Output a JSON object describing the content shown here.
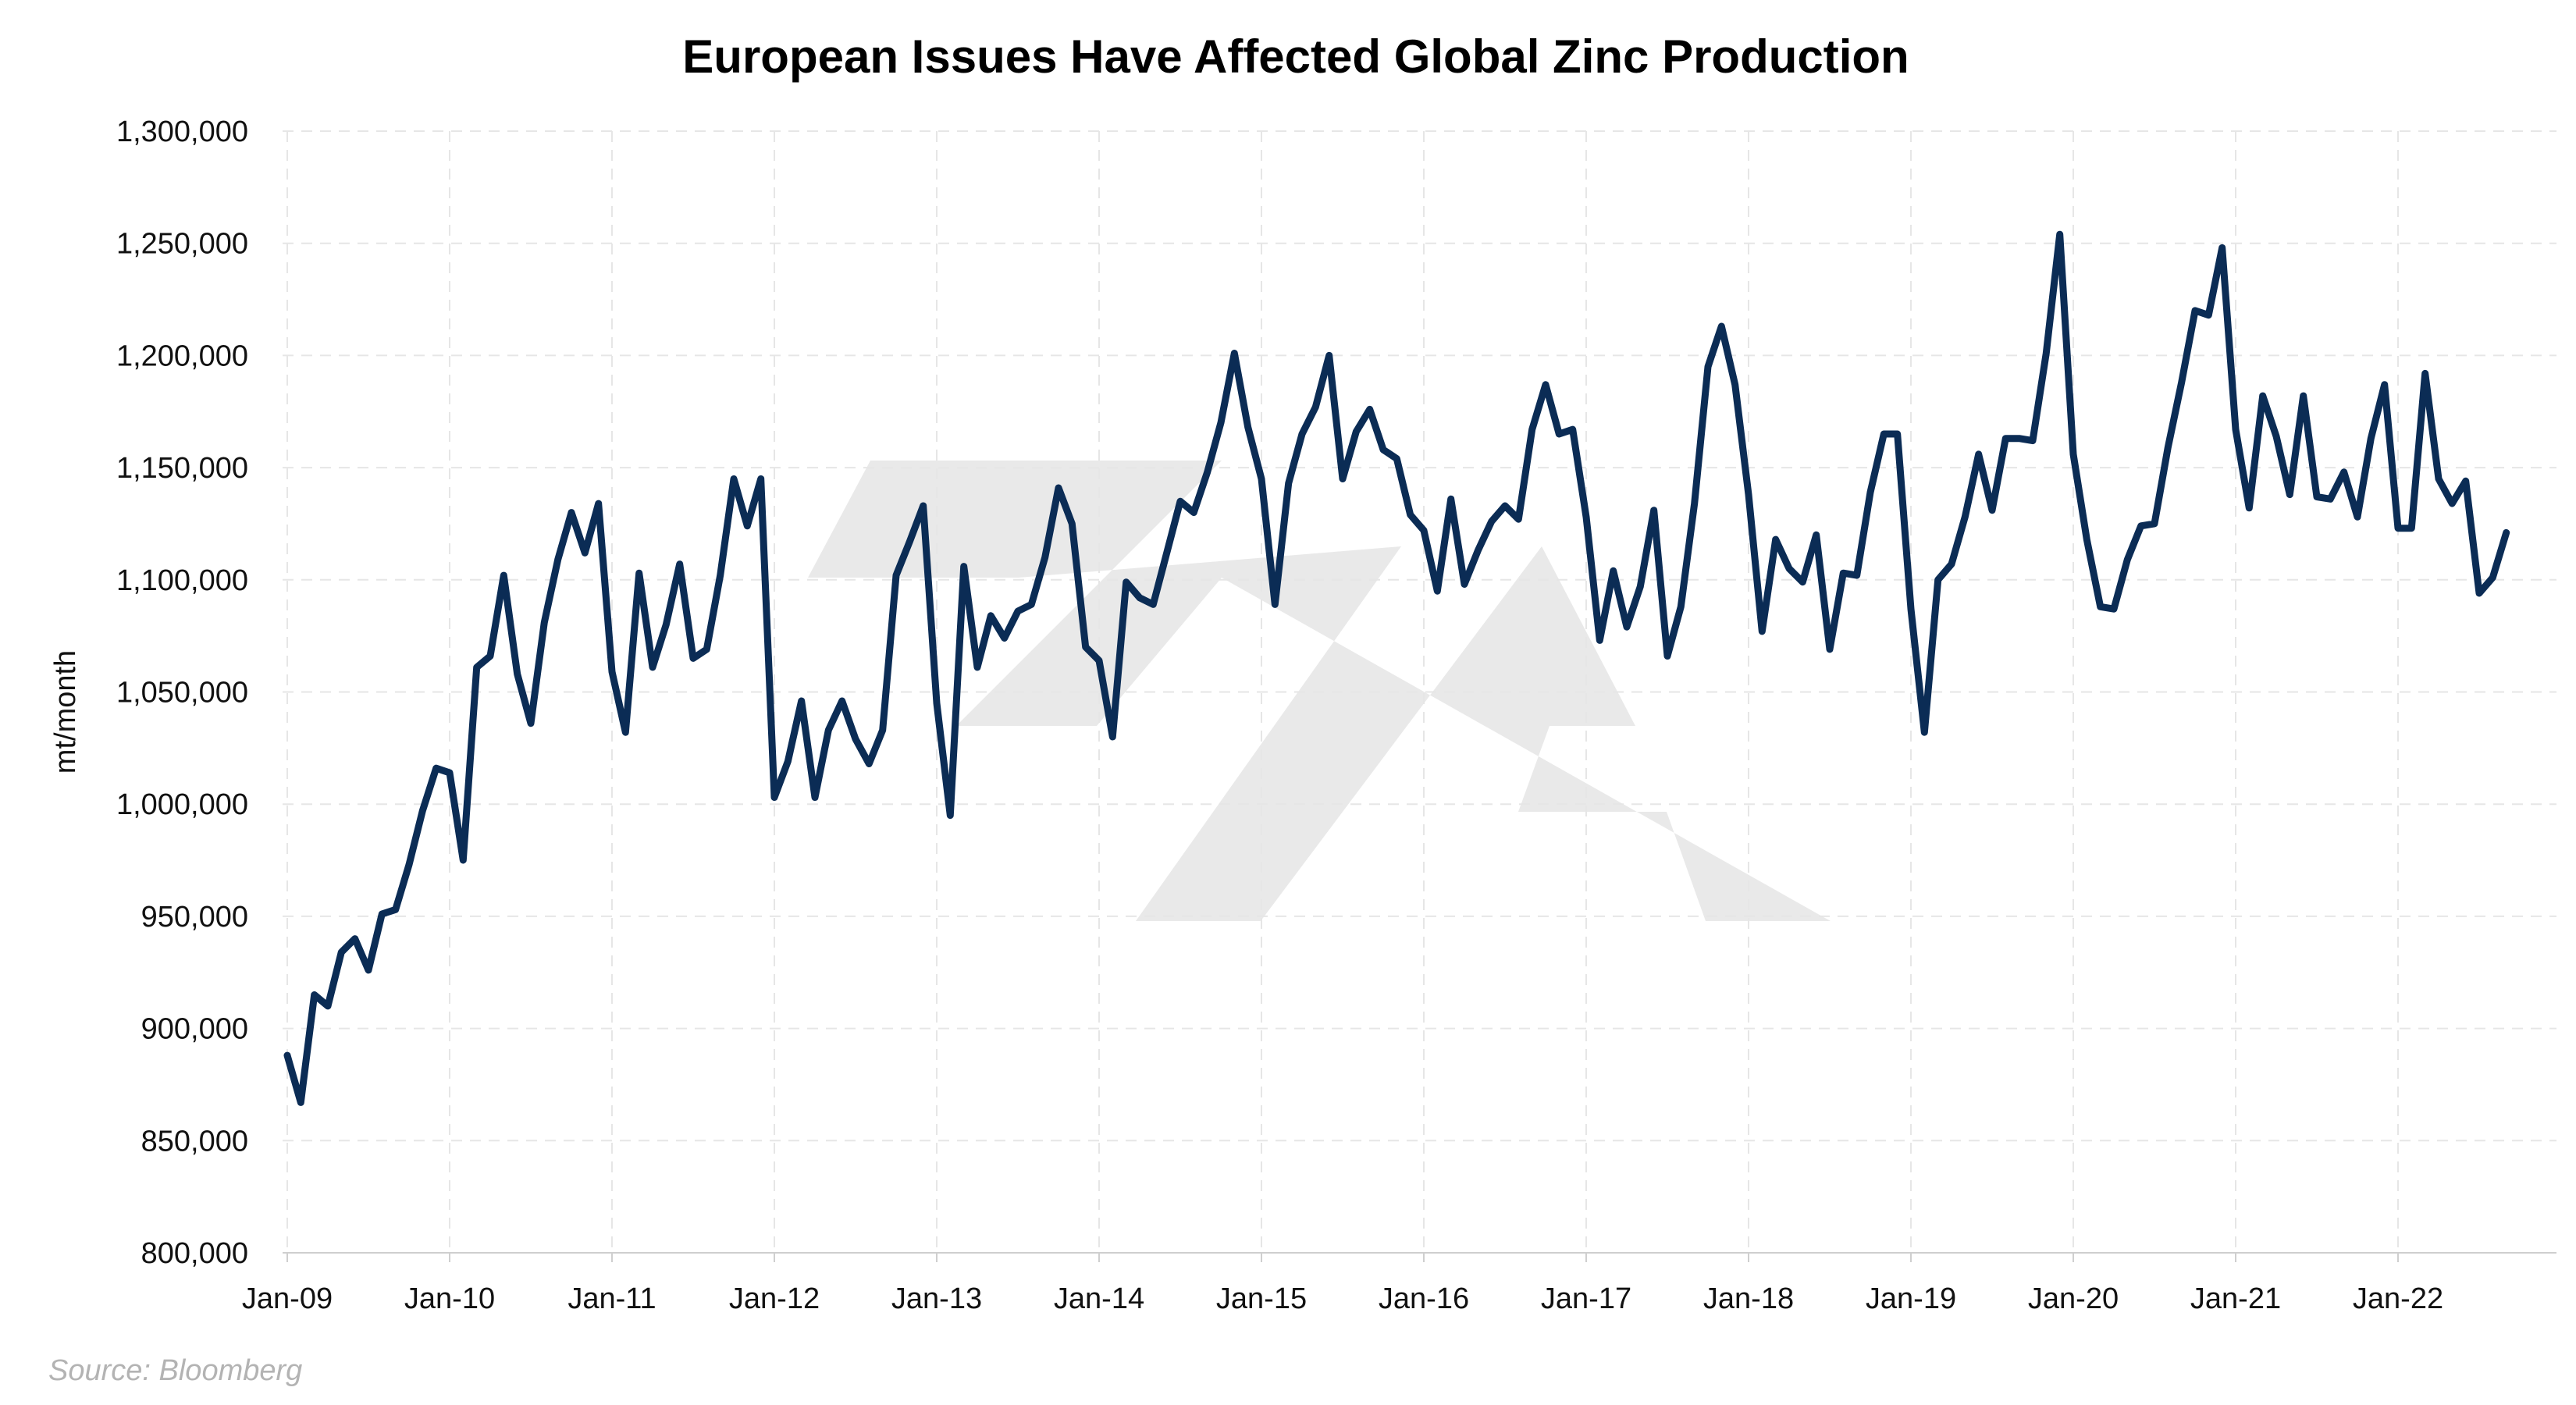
{
  "chart_data": {
    "type": "line",
    "title": "European Issues Have Affected Global Zinc Production",
    "xlabel": "",
    "ylabel": "mt/month",
    "ylim": [
      800000,
      1300000
    ],
    "yticks": [
      "800,000",
      "850,000",
      "900,000",
      "950,000",
      "1,000,000",
      "1,050,000",
      "1,100,000",
      "1,150,000",
      "1,200,000",
      "1,250,000",
      "1,300,000"
    ],
    "xticks": [
      "Jan-09",
      "Jan-10",
      "Jan-11",
      "Jan-12",
      "Jan-13",
      "Jan-14",
      "Jan-15",
      "Jan-16",
      "Jan-17",
      "Jan-18",
      "Jan-19",
      "Jan-20",
      "Jan-21",
      "Jan-22"
    ],
    "grid": true,
    "legend": "none",
    "line_color": "#0b2c55",
    "x_start": "Jan-09",
    "x_end": "Oct-22",
    "series": [
      {
        "values": [
          888000,
          867000,
          915000,
          910000,
          934000,
          940000,
          926000,
          951000,
          953000,
          973000,
          997000,
          1016000,
          1014000,
          975000,
          1061000,
          1066000,
          1102000,
          1058000,
          1036000,
          1081000,
          1109000,
          1130000,
          1112000,
          1134000,
          1059000,
          1032000,
          1103000,
          1061000,
          1080000,
          1107000,
          1065000,
          1069000,
          1102000,
          1145000,
          1124000,
          1145000,
          1003000,
          1019000,
          1046000,
          1003000,
          1033000,
          1046000,
          1029000,
          1018000,
          1033000,
          1102000,
          1117000,
          1133000,
          1045000,
          995000,
          1106000,
          1061000,
          1084000,
          1074000,
          1086000,
          1089000,
          1110000,
          1141000,
          1125000,
          1070000,
          1064000,
          1030000,
          1099000,
          1092000,
          1089000,
          1112000,
          1135000,
          1130000,
          1148000,
          1170000,
          1201000,
          1168000,
          1145000,
          1089000,
          1143000,
          1165000,
          1177000,
          1200000,
          1145000,
          1166000,
          1176000,
          1158000,
          1154000,
          1129000,
          1122000,
          1095000,
          1136000,
          1098000,
          1113000,
          1126000,
          1133000,
          1127000,
          1167000,
          1187000,
          1165000,
          1167000,
          1128000,
          1073000,
          1104000,
          1079000,
          1097000,
          1131000,
          1066000,
          1088000,
          1134000,
          1195000,
          1213000,
          1187000,
          1138000,
          1077000,
          1118000,
          1105000,
          1099000,
          1120000,
          1069000,
          1103000,
          1102000,
          1139000,
          1165000,
          1165000,
          1087000,
          1032000,
          1100000,
          1107000,
          1128000,
          1156000,
          1131000,
          1163000,
          1163000,
          1162000,
          1201000,
          1254000,
          1156000,
          1118000,
          1088000,
          1087000,
          1109000,
          1124000,
          1125000,
          1159000,
          1188000,
          1220000,
          1218000,
          1248000,
          1167000,
          1132000,
          1182000,
          1164000,
          1138000,
          1182000,
          1137000,
          1136000,
          1148000,
          1128000,
          1163000,
          1187000,
          1123000,
          1123000,
          1192000,
          1145000,
          1134000,
          1144000,
          1094000,
          1101000,
          1121000
        ]
      }
    ]
  },
  "source": "Source: Bloomberg"
}
